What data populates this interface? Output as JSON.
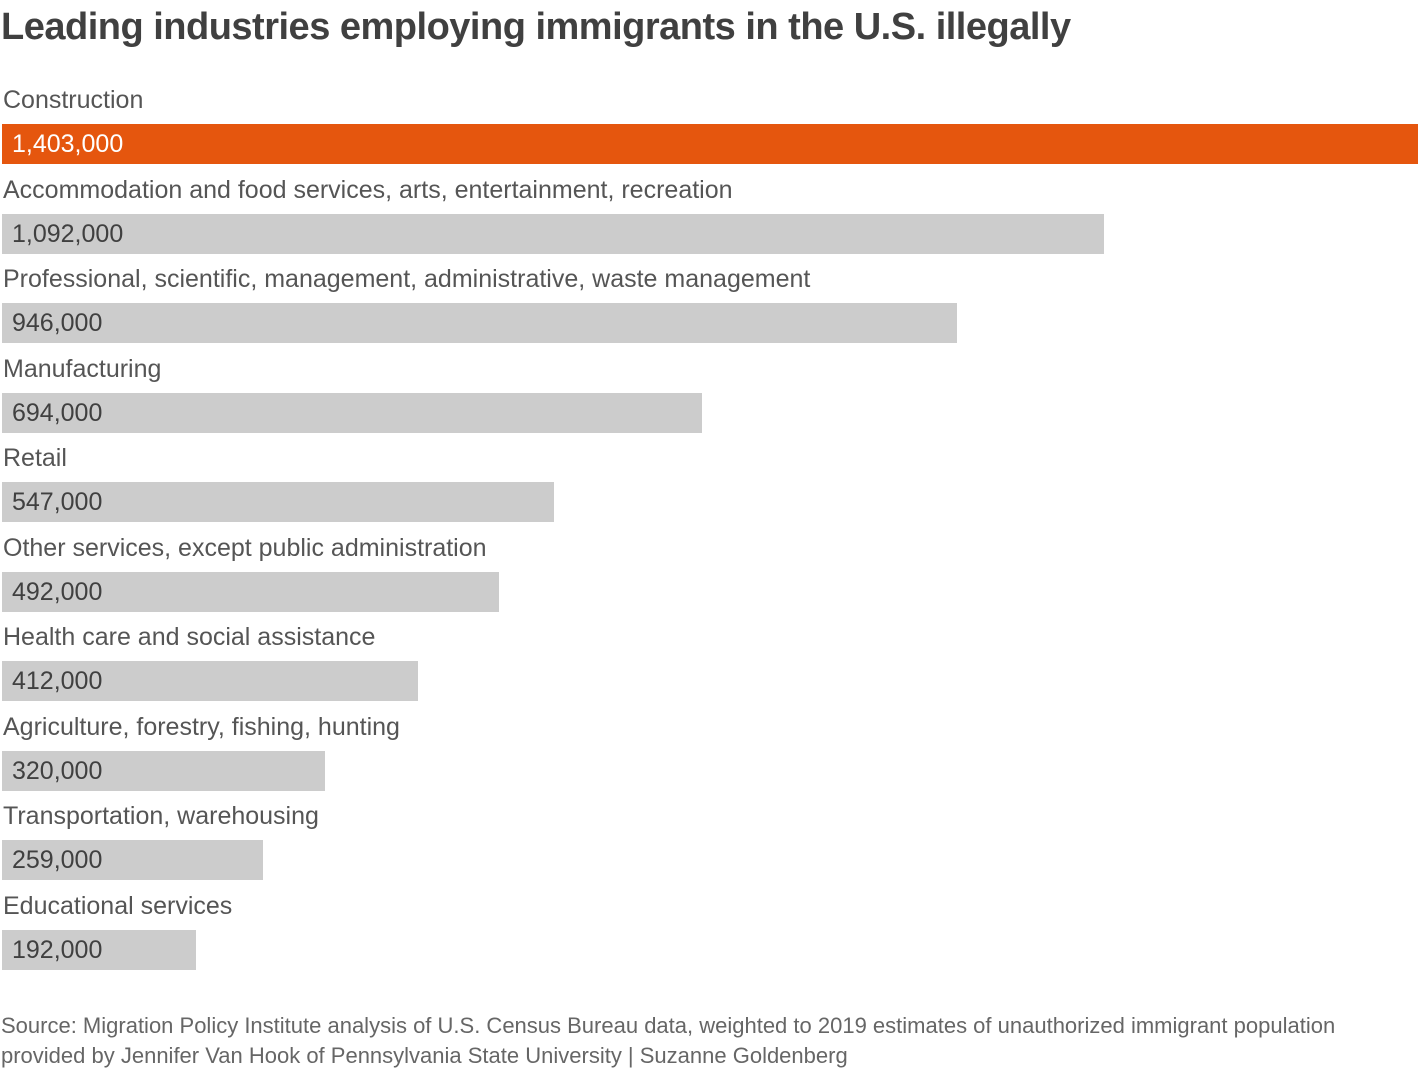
{
  "chart_data": {
    "type": "bar",
    "orientation": "horizontal",
    "title": "Leading industries employing immigrants in the U.S. illegally",
    "categories": [
      "Construction",
      "Accommodation and food services, arts, entertainment, recreation",
      "Professional, scientific, management, administrative, waste management",
      "Manufacturing",
      "Retail",
      "Other services, except public administration",
      "Health care and social assistance",
      "Agriculture, forestry, fishing, hunting",
      "Transportation, warehousing",
      "Educational services"
    ],
    "values": [
      1403000,
      1092000,
      946000,
      694000,
      547000,
      492000,
      412000,
      320000,
      259000,
      192000
    ],
    "value_labels": [
      "1,403,000",
      "1,092,000",
      "946,000",
      "694,000",
      "547,000",
      "492,000",
      "412,000",
      "320,000",
      "259,000",
      "192,000"
    ],
    "highlight_index": 0,
    "xlim": [
      0,
      1403000
    ],
    "grid": false,
    "source": "Source: Migration Policy Institute analysis of U.S. Census Bureau data, weighted to 2019 estimates of unauthorized immigrant population provided by Jennifer Van Hook of Pennsylvania State University | Suzanne Goldenberg"
  },
  "colors": {
    "highlight": "#e5560e",
    "bar": "#cccccc",
    "title": "#404040"
  }
}
